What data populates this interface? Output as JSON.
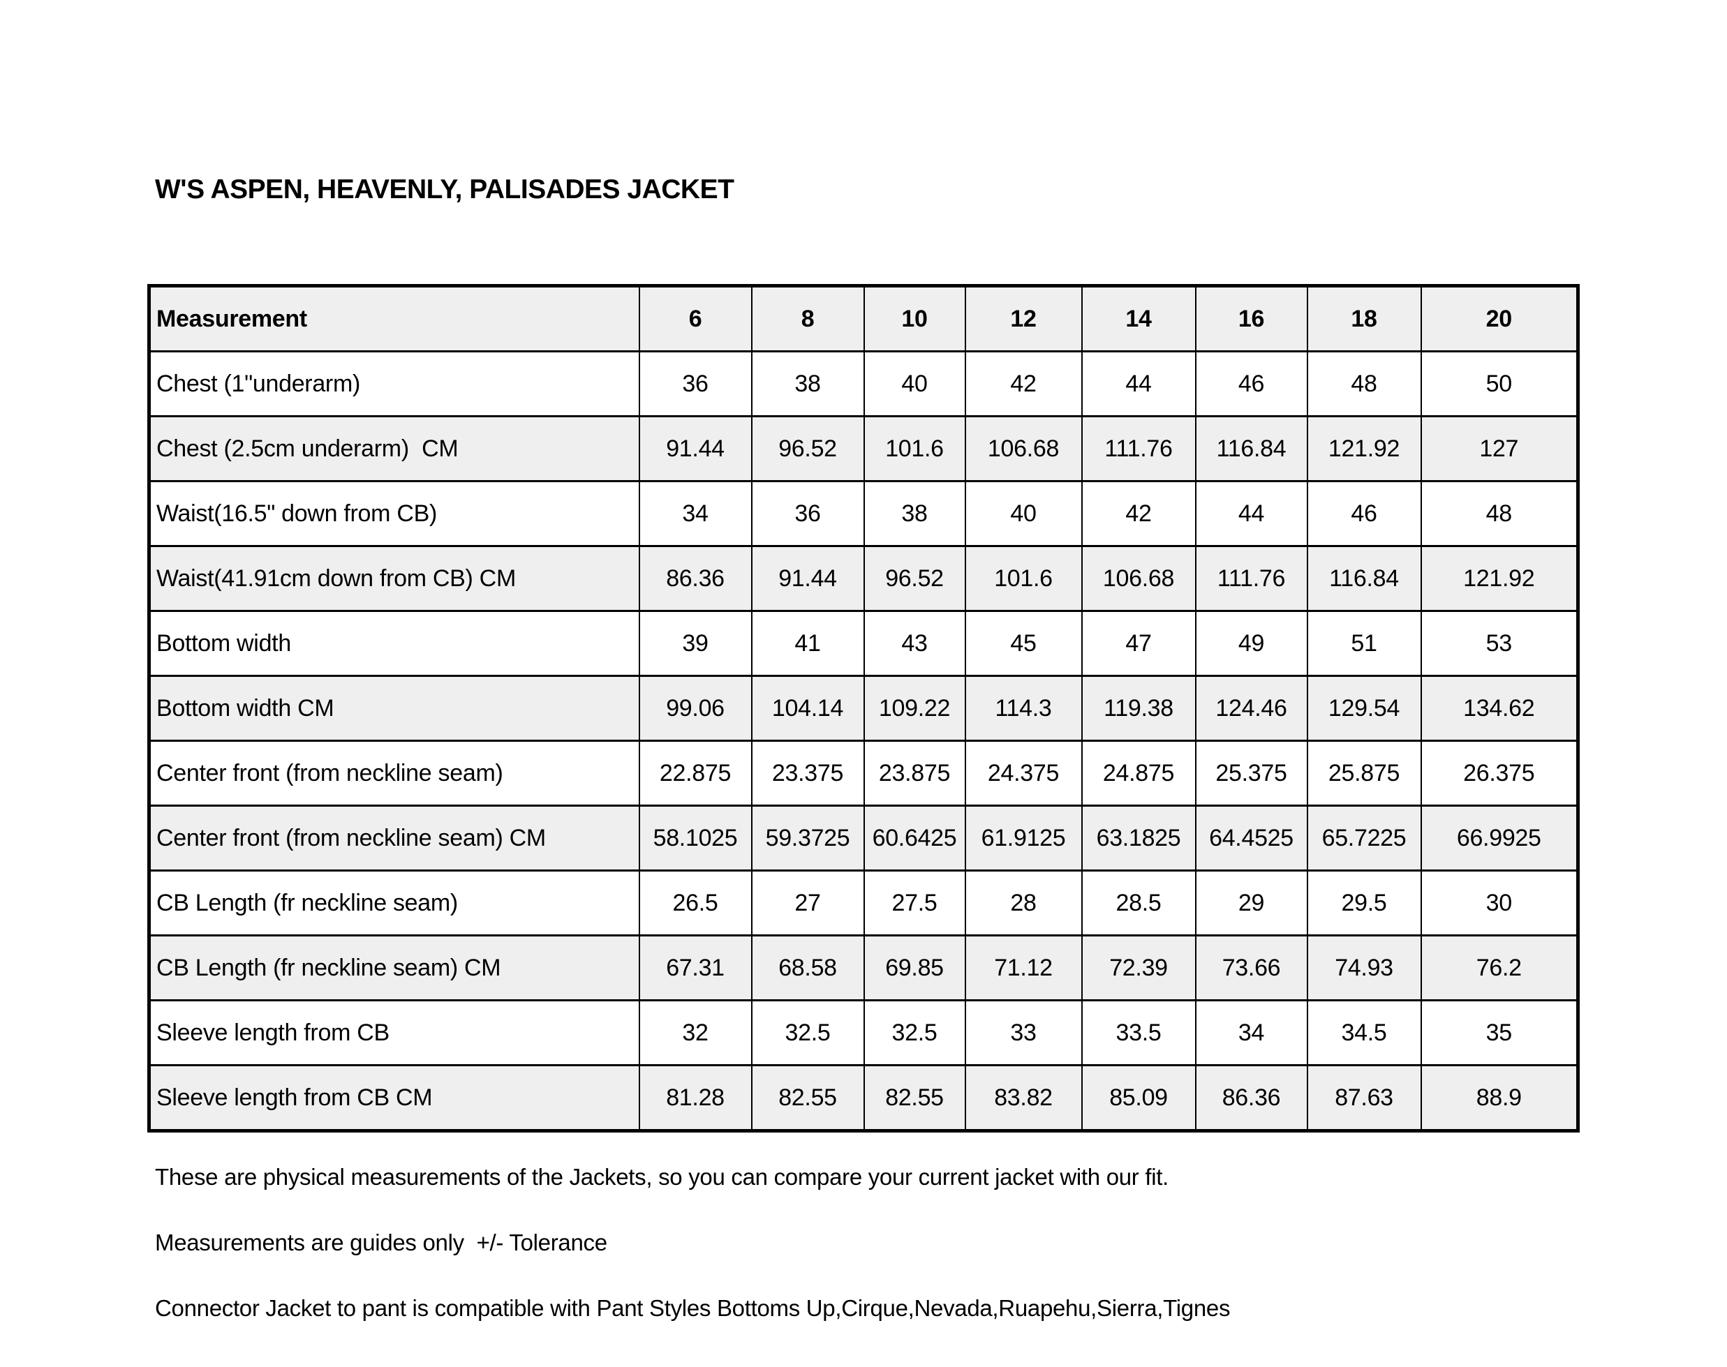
{
  "title": "W'S ASPEN, HEAVENLY, PALISADES JACKET",
  "table": {
    "header": [
      "Measurement",
      "6",
      "8",
      "10",
      "12",
      "14",
      "16",
      "18",
      "20"
    ],
    "rows": [
      {
        "label": "Chest (1\"underarm)",
        "values": [
          "36",
          "38",
          "40",
          "42",
          "44",
          "46",
          "48",
          "50"
        ]
      },
      {
        "label": "Chest (2.5cm underarm)  CM",
        "values": [
          "91.44",
          "96.52",
          "101.6",
          "106.68",
          "111.76",
          "116.84",
          "121.92",
          "127"
        ]
      },
      {
        "label": "Waist(16.5\" down from CB)",
        "values": [
          "34",
          "36",
          "38",
          "40",
          "42",
          "44",
          "46",
          "48"
        ]
      },
      {
        "label": "Waist(41.91cm down from CB) CM",
        "values": [
          "86.36",
          "91.44",
          "96.52",
          "101.6",
          "106.68",
          "111.76",
          "116.84",
          "121.92"
        ]
      },
      {
        "label": "Bottom width",
        "values": [
          "39",
          "41",
          "43",
          "45",
          "47",
          "49",
          "51",
          "53"
        ]
      },
      {
        "label": "Bottom width CM",
        "values": [
          "99.06",
          "104.14",
          "109.22",
          "114.3",
          "119.38",
          "124.46",
          "129.54",
          "134.62"
        ]
      },
      {
        "label": "Center front (from neckline seam)",
        "values": [
          "22.875",
          "23.375",
          "23.875",
          "24.375",
          "24.875",
          "25.375",
          "25.875",
          "26.375"
        ]
      },
      {
        "label": "Center front (from neckline seam) CM",
        "values": [
          "58.1025",
          "59.3725",
          "60.6425",
          "61.9125",
          "63.1825",
          "64.4525",
          "65.7225",
          "66.9925"
        ]
      },
      {
        "label": "CB Length (fr neckline seam)",
        "values": [
          "26.5",
          "27",
          "27.5",
          "28",
          "28.5",
          "29",
          "29.5",
          "30"
        ]
      },
      {
        "label": "CB Length (fr neckline seam) CM",
        "values": [
          "67.31",
          "68.58",
          "69.85",
          "71.12",
          "72.39",
          "73.66",
          "74.93",
          "76.2"
        ]
      },
      {
        "label": "Sleeve length from CB",
        "values": [
          "32",
          "32.5",
          "32.5",
          "33",
          "33.5",
          "34",
          "34.5",
          "35"
        ]
      },
      {
        "label": "Sleeve length from CB CM",
        "values": [
          "81.28",
          "82.55",
          "82.55",
          "83.82",
          "85.09",
          "86.36",
          "87.63",
          "88.9"
        ]
      }
    ]
  },
  "notes": [
    "These are physical measurements of the Jackets, so you can compare your current jacket with our fit.",
    "Measurements are guides only  +/- Tolerance",
    "Connector Jacket to pant is compatible with Pant Styles Bottoms Up,Cirque,Nevada,Ruapehu,Sierra,Tignes"
  ],
  "colors": {
    "row_shade": "#efefef",
    "border": "#000000",
    "background": "#ffffff"
  }
}
